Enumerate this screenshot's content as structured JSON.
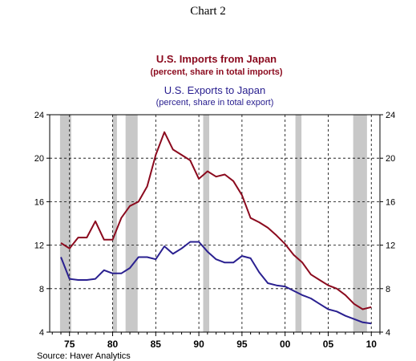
{
  "page": {
    "title": "Chart 2"
  },
  "chart_data": {
    "type": "line",
    "title_1": "U.S. Imports from Japan",
    "subtitle_1": "(percent, share in total imports)",
    "title_2": "U.S. Exports to Japan",
    "subtitle_2": "(percent, share in total export)",
    "source": "Source: Haver Analytics",
    "x_tick_labels": [
      "75",
      "80",
      "85",
      "90",
      "95",
      "00",
      "05",
      "10"
    ],
    "x_tick_values": [
      1975,
      1980,
      1985,
      1990,
      1995,
      2000,
      2005,
      2010
    ],
    "y_ticks": [
      4,
      8,
      12,
      16,
      20,
      24
    ],
    "xlim": [
      1972.7,
      2011.0
    ],
    "ylim": [
      4,
      24
    ],
    "grid": true,
    "recession_bands": [
      [
        1973.9,
        1975.2
      ],
      [
        1980.0,
        1980.5
      ],
      [
        1981.5,
        1982.9
      ],
      [
        1990.5,
        1991.2
      ],
      [
        2001.2,
        2001.9
      ],
      [
        2007.9,
        2009.5
      ]
    ],
    "series": [
      {
        "name": "U.S. Imports from Japan",
        "color": "#8b0a1e",
        "x": [
          1974,
          1975,
          1976,
          1977,
          1978,
          1979,
          1980,
          1981,
          1982,
          1983,
          1984,
          1985,
          1986,
          1987,
          1988,
          1989,
          1990,
          1991,
          1992,
          1993,
          1994,
          1995,
          1996,
          1997,
          1998,
          1999,
          2000,
          2001,
          2002,
          2003,
          2004,
          2005,
          2006,
          2007,
          2008,
          2009,
          2010
        ],
        "values": [
          12.2,
          11.7,
          12.7,
          12.7,
          14.2,
          12.5,
          12.5,
          14.5,
          15.6,
          16.0,
          17.4,
          20.3,
          22.4,
          20.8,
          20.3,
          19.8,
          18.1,
          18.8,
          18.3,
          18.5,
          17.9,
          16.6,
          14.5,
          14.1,
          13.6,
          12.9,
          12.1,
          11.1,
          10.4,
          9.3,
          8.8,
          8.3,
          8.0,
          7.4,
          6.6,
          6.1,
          6.3
        ]
      },
      {
        "name": "U.S. Exports to Japan",
        "color": "#2a2090",
        "x": [
          1974,
          1975,
          1976,
          1977,
          1978,
          1979,
          1980,
          1981,
          1982,
          1983,
          1984,
          1985,
          1986,
          1987,
          1988,
          1989,
          1990,
          1991,
          1992,
          1993,
          1994,
          1995,
          1996,
          1997,
          1998,
          1999,
          2000,
          2001,
          2002,
          2003,
          2004,
          2005,
          2006,
          2007,
          2008,
          2009,
          2010
        ],
        "values": [
          10.9,
          8.9,
          8.8,
          8.8,
          8.9,
          9.7,
          9.4,
          9.4,
          9.9,
          10.9,
          10.9,
          10.7,
          11.9,
          11.2,
          11.7,
          12.3,
          12.3,
          11.4,
          10.7,
          10.4,
          10.4,
          11.0,
          10.8,
          9.5,
          8.5,
          8.3,
          8.2,
          7.8,
          7.4,
          7.1,
          6.6,
          6.1,
          5.9,
          5.5,
          5.2,
          4.9,
          4.8
        ]
      }
    ]
  }
}
